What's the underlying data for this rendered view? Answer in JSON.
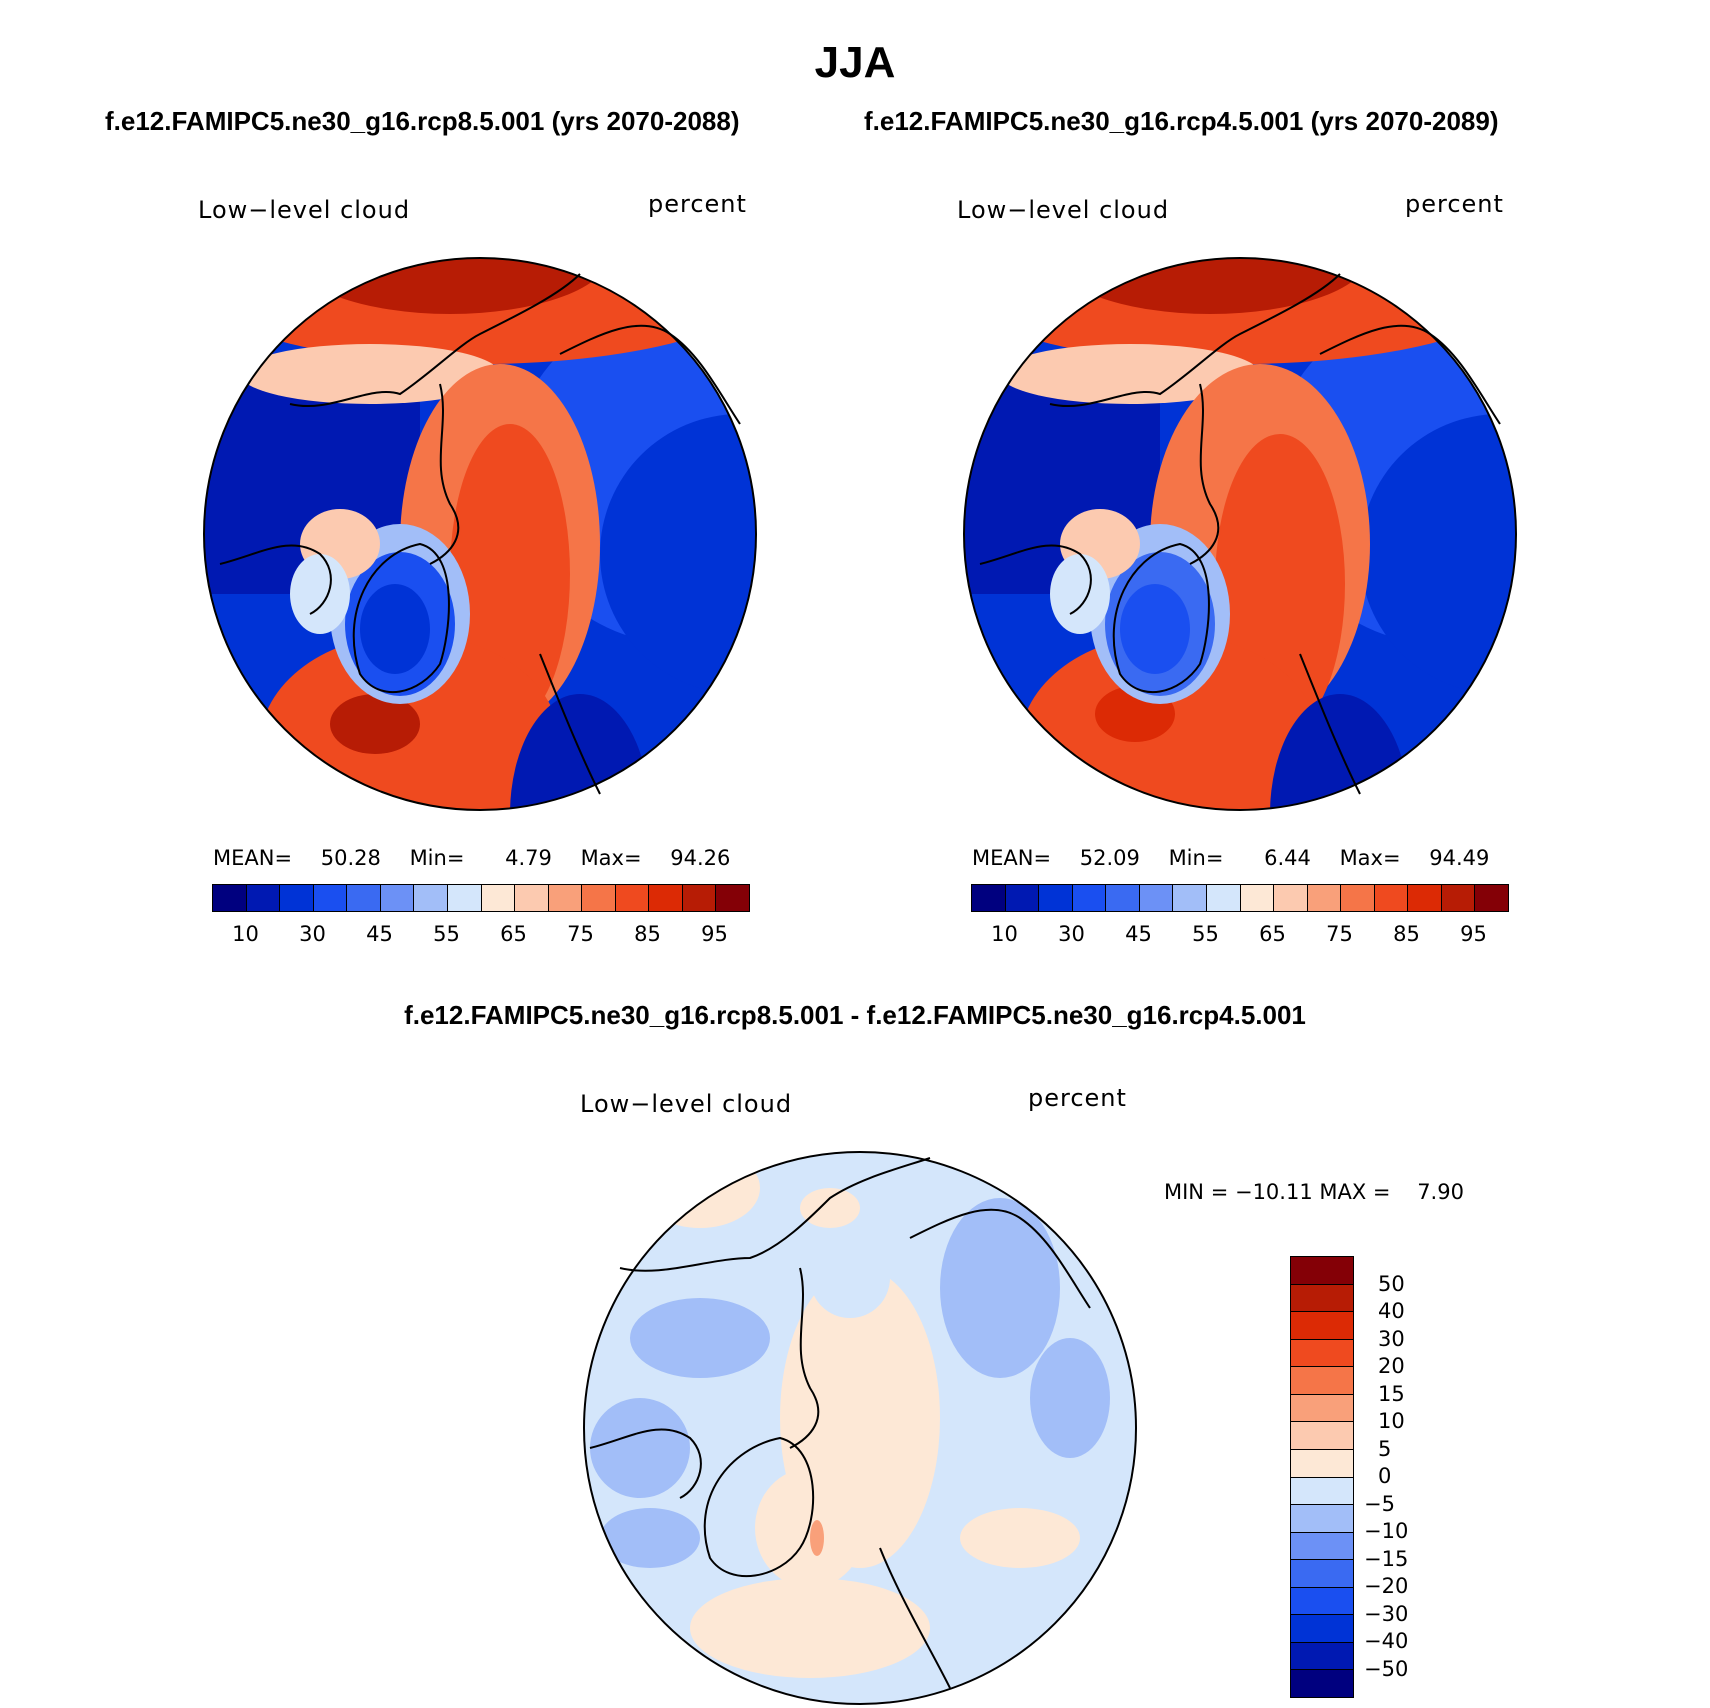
{
  "title": "JJA",
  "panel1": {
    "case": "f.e12.FAMIPC5.ne30_g16.rcp8.5.001 (yrs 2070-2088)",
    "left_label": "Low−level cloud",
    "right_label": "percent",
    "stats": {
      "mean_label": "MEAN=",
      "mean": "50.28",
      "min_label": "Min=",
      "min": "4.79",
      "max_label": "Max=",
      "max": "94.26"
    }
  },
  "panel2": {
    "case": "f.e12.FAMIPC5.ne30_g16.rcp4.5.001 (yrs 2070-2089)",
    "left_label": "Low−level cloud",
    "right_label": "percent",
    "stats": {
      "mean_label": "MEAN=",
      "mean": "52.09",
      "min_label": "Min=",
      "min": "6.44",
      "max_label": "Max=",
      "max": "94.49"
    }
  },
  "panel3": {
    "case": "f.e12.FAMIPC5.ne30_g16.rcp8.5.001 - f.e12.FAMIPC5.ne30_g16.rcp4.5.001",
    "left_label": "Low−level cloud",
    "right_label": "percent",
    "minmax": "MIN = −10.11 MAX =    7.90"
  },
  "colorbar_abs": {
    "colors": [
      "#00007f",
      "#0019b2",
      "#0033d6",
      "#1a4ff0",
      "#3a6af2",
      "#6c91f6",
      "#a2bef8",
      "#d4e6fb",
      "#fde8d6",
      "#fccab0",
      "#f9a07a",
      "#f57548",
      "#ef4a1f",
      "#dc2a05",
      "#b71c05",
      "#840006"
    ],
    "tick_labels": [
      "10",
      "30",
      "45",
      "55",
      "65",
      "75",
      "85",
      "95"
    ]
  },
  "colorbar_diff": {
    "colors": [
      "#840006",
      "#b71c05",
      "#dc2a05",
      "#ef4a1f",
      "#f57548",
      "#f9a07a",
      "#fccab0",
      "#fde8d6",
      "#d4e6fb",
      "#a2bef8",
      "#6c91f6",
      "#3a6af2",
      "#1a4ff0",
      "#0033d6",
      "#0019b2",
      "#00007f"
    ],
    "tick_labels": [
      "50",
      "40",
      "30",
      "20",
      "15",
      "10",
      "5",
      "0",
      "−5",
      "−10",
      "−15",
      "−20",
      "−30",
      "−40",
      "−50"
    ]
  }
}
